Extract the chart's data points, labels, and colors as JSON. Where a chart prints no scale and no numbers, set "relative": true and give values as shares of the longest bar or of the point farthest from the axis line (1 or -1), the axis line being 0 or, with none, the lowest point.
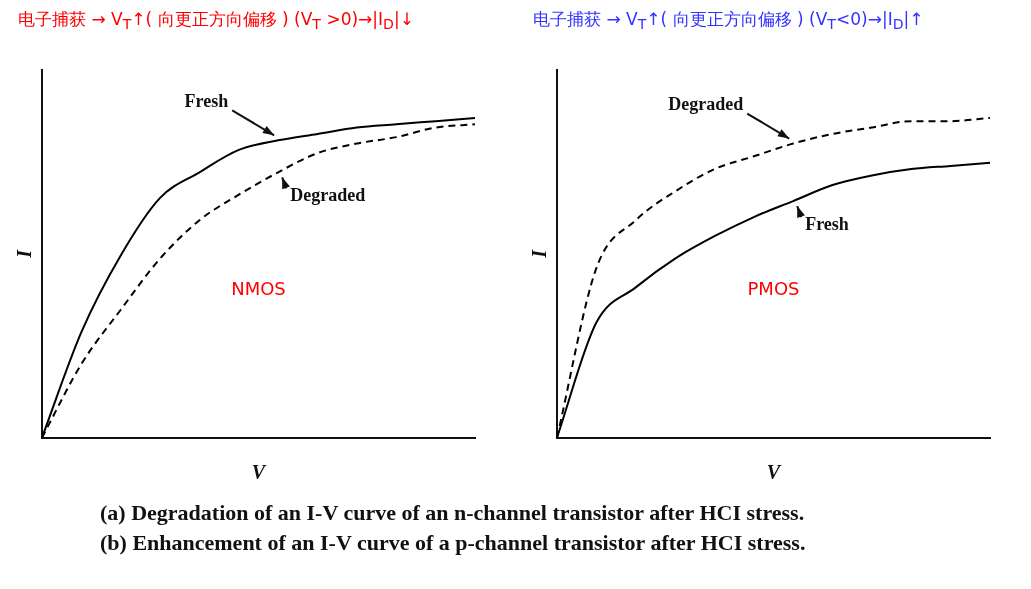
{
  "chart_data": [
    {
      "type": "line",
      "title": "电子捕获 → V$_{T}$↑( 向更正方向偏移 ) (V$_{T}$ >0)→|I$_{D}$|↓",
      "xlabel": "V",
      "ylabel": "I",
      "relative": true,
      "marker": "none",
      "legend": false,
      "grid": false,
      "categories": [
        null,
        null,
        null,
        null,
        null,
        null,
        null,
        null,
        null,
        null,
        null,
        null
      ],
      "series": [
        {
          "name": "Fresh",
          "color": "#000000",
          "line_style": "solid",
          "values": [
            0,
            0.33,
            0.57,
            0.75,
            0.83,
            0.9,
            0.93,
            0.95,
            0.97,
            0.98,
            0.99,
            1
          ]
        },
        {
          "name": "Degraded",
          "color": "#000000",
          "line_style": "dashed",
          "values": [
            0,
            0.23,
            0.4,
            0.56,
            0.68,
            0.76,
            0.83,
            0.89,
            0.92,
            0.94,
            0.97,
            0.98
          ]
        }
      ],
      "annotations": [
        "NMOS",
        "(a) Degradation of an I-V curve of an n-channel transistor after HCI stress."
      ]
    },
    {
      "type": "line",
      "title": "电子捕获 → V$_{T}$↑( 向更正方向偏移 ) (V$_{T}$<0)→|I$_{D}$|↑",
      "xlabel": "V",
      "ylabel": "I",
      "relative": true,
      "marker": "none",
      "legend": false,
      "grid": false,
      "categories": [
        null,
        null,
        null,
        null,
        null,
        null,
        null,
        null,
        null,
        null,
        null,
        null
      ],
      "series": [
        {
          "name": "Degraded",
          "color": "#000000",
          "line_style": "dashed",
          "values": [
            0,
            0.53,
            0.68,
            0.77,
            0.84,
            0.88,
            0.92,
            0.95,
            0.97,
            0.99,
            0.99,
            1
          ]
        },
        {
          "name": "Fresh",
          "color": "#000000",
          "line_style": "solid",
          "values": [
            0,
            0.36,
            0.47,
            0.56,
            0.63,
            0.69,
            0.74,
            0.79,
            0.82,
            0.84,
            0.85,
            0.86
          ]
        }
      ],
      "annotations": [
        "PMOS",
        "(b) Enhancement of an I-V curve of a p-channel transistor after HCI stress."
      ]
    }
  ]
}
